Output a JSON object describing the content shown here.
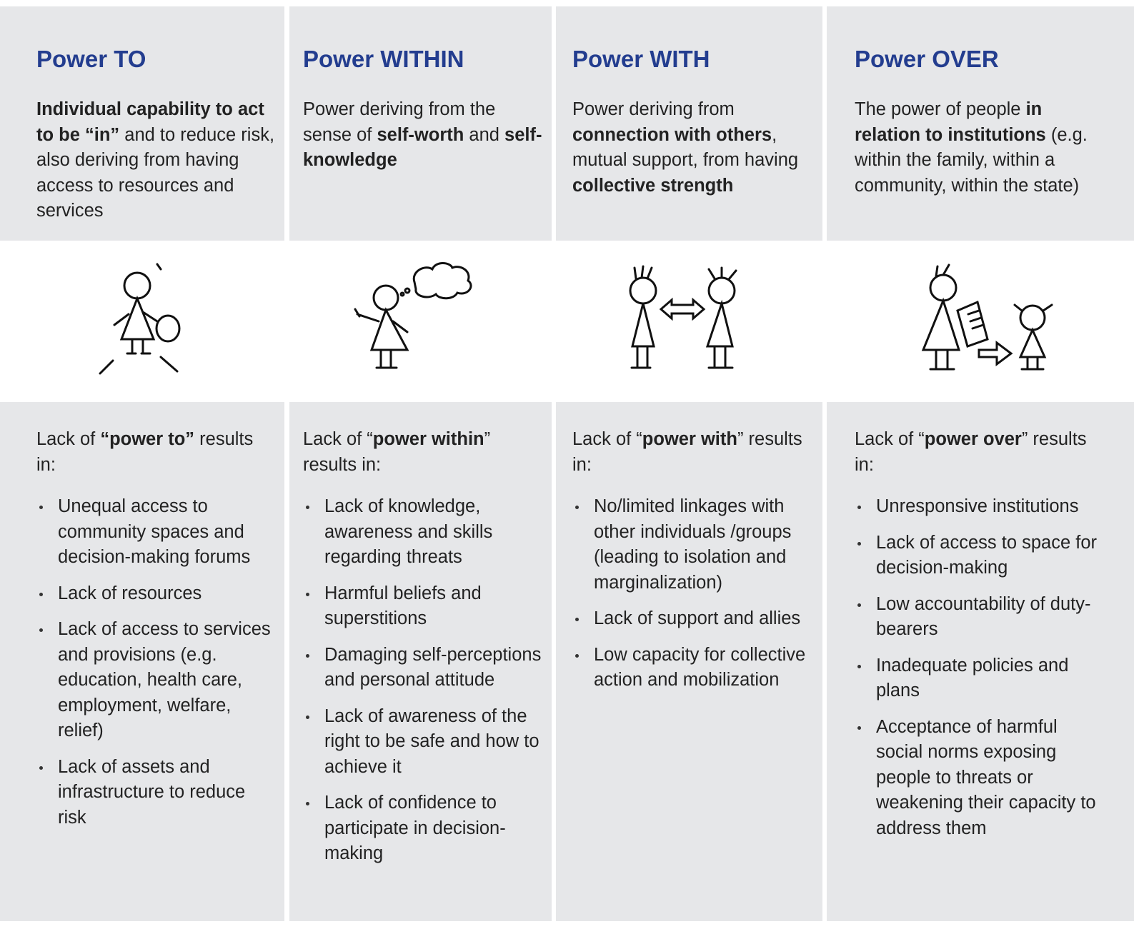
{
  "columns": [
    {
      "title": "Power TO",
      "description": [
        {
          "bold": "Individual capability to act to be “in”"
        },
        {
          "plain": " and to reduce risk, also deriving from having access to resources and services"
        }
      ],
      "lack_intro": [
        {
          "plain": "Lack of "
        },
        {
          "bold": "“power to”"
        },
        {
          "plain": " results in:"
        }
      ],
      "results": [
        "Unequal access to community spaces and decision-making forums",
        "Lack of resources",
        "Lack of access to services and provisions (e.g. education, health care, employment, welfare, relief)",
        "Lack of assets and infrastructure to reduce risk"
      ]
    },
    {
      "title": "Power WITHIN",
      "description": [
        {
          "plain": "Power deriving from the sense of "
        },
        {
          "bold": "self-worth"
        },
        {
          "plain": " and "
        },
        {
          "bold": "self-knowledge"
        }
      ],
      "lack_intro": [
        {
          "plain": "Lack of “"
        },
        {
          "bold": "power within"
        },
        {
          "plain": "” results in:"
        }
      ],
      "results": [
        "Lack of knowledge, awareness and skills regarding threats",
        "Harmful beliefs and superstitions",
        "Damaging self-perceptions and personal attitude",
        "Lack of awareness of the right to be safe and how to achieve it",
        "Lack of confidence to participate in decision-making"
      ]
    },
    {
      "title": "Power WITH",
      "description": [
        {
          "plain": "Power deriving from "
        },
        {
          "bold": "connection with others"
        },
        {
          "plain": ", mutual support, from having "
        },
        {
          "bold": "collective strength"
        }
      ],
      "lack_intro": [
        {
          "plain": "Lack of “"
        },
        {
          "bold": "power with"
        },
        {
          "plain": "” results in:"
        }
      ],
      "results": [
        "No/limited linkages with other individuals /groups (leading to isolation and marginalization)",
        "Lack of support and allies",
        "Low capacity for collective action and mobilization"
      ]
    },
    {
      "title": "Power OVER",
      "description": [
        {
          "plain": "The power of people "
        },
        {
          "bold": "in relation to institutions"
        },
        {
          "plain": " (e.g. within the family, within a community, within the state)"
        }
      ],
      "lack_intro": [
        {
          "plain": "Lack of “"
        },
        {
          "bold": "power over"
        },
        {
          "plain": "” results in:"
        }
      ],
      "results": [
        "Unresponsive institutions",
        "Lack of access to space for decision-making",
        "Low accountability of duty-bearers",
        "Inadequate policies and plans",
        "Acceptance of harmful social norms exposing people to threats or weakening their capacity to address them"
      ]
    }
  ]
}
